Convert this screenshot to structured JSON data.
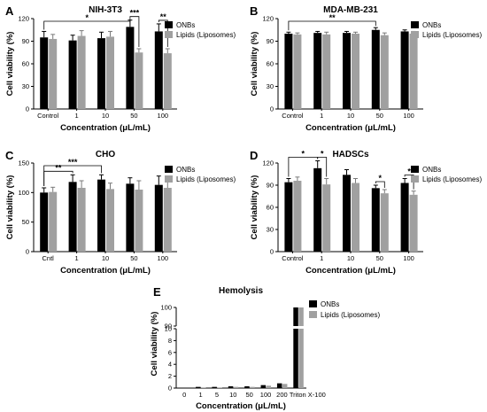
{
  "colors": {
    "onbs": "#000000",
    "lipids": "#a0a0a0"
  },
  "chart_data": [
    {
      "letter": "A",
      "title": "NIH-3T3",
      "type": "bar",
      "xlabel": "Concentration  (μL/mL)",
      "ylabel": "Cell viability (%)",
      "ylim": [
        0,
        120
      ],
      "yticks": [
        "0",
        "30",
        "60",
        "90",
        "120"
      ],
      "ytick_values": [
        0,
        30,
        60,
        90,
        120
      ],
      "categories": [
        "Control",
        "1",
        "10",
        "50",
        "100"
      ],
      "legend": [
        "ONBs",
        "Lipids (Liposomes)"
      ],
      "legend_position": "top-right",
      "series": [
        {
          "name": "ONBs",
          "values": [
            95,
            91,
            94,
            109,
            103
          ],
          "errors": [
            8,
            7,
            8,
            9,
            10
          ]
        },
        {
          "name": "Lipids (Liposomes)",
          "values": [
            93,
            97,
            96,
            75,
            74
          ],
          "errors": [
            6,
            7,
            7,
            5,
            6
          ]
        }
      ],
      "significance": [
        {
          "label": "*",
          "from": "ONBs:0",
          "to": "ONBs:3"
        },
        {
          "label": "***",
          "from": "ONBs:3",
          "to": "Lipids (Liposomes):3"
        },
        {
          "label": "**",
          "from": "ONBs:4",
          "to": "Lipids (Liposomes):4"
        }
      ]
    },
    {
      "letter": "B",
      "title": "MDA-MB-231",
      "type": "bar",
      "xlabel": "Concentration  (μL/mL)",
      "ylabel": "Cell viability (%)",
      "ylim": [
        0,
        120
      ],
      "yticks": [
        "0",
        "30",
        "60",
        "90",
        "120"
      ],
      "ytick_values": [
        0,
        30,
        60,
        90,
        120
      ],
      "categories": [
        "Control",
        "1",
        "10",
        "50",
        "100"
      ],
      "legend": [
        "ONBs",
        "Lipids (Liposomes)"
      ],
      "legend_position": "top-right",
      "series": [
        {
          "name": "ONBs",
          "values": [
            100,
            101,
            101,
            105,
            103
          ],
          "errors": [
            2,
            2,
            2,
            3,
            2
          ]
        },
        {
          "name": "Lipids (Liposomes)",
          "values": [
            99,
            99,
            100,
            98,
            100
          ],
          "errors": [
            2,
            3,
            2,
            3,
            3
          ]
        }
      ],
      "significance": [
        {
          "label": "**",
          "from": "ONBs:0",
          "to": "ONBs:3"
        }
      ]
    },
    {
      "letter": "C",
      "title": "CHO",
      "type": "bar",
      "xlabel": "Concentration  (μL/mL)",
      "ylabel": "Cell viability (%)",
      "ylim": [
        0,
        150
      ],
      "yticks": [
        "0",
        "50",
        "100",
        "150"
      ],
      "ytick_values": [
        0,
        50,
        100,
        150
      ],
      "categories": [
        "Cntl",
        "1",
        "10",
        "50",
        "100"
      ],
      "legend": [
        "ONBs",
        "Lipids (Liposomes)"
      ],
      "legend_position": "top-right",
      "series": [
        {
          "name": "ONBs",
          "values": [
            100,
            118,
            122,
            115,
            113
          ],
          "errors": [
            8,
            12,
            8,
            10,
            15
          ]
        },
        {
          "name": "Lipids (Liposomes)",
          "values": [
            101,
            108,
            106,
            105,
            108
          ],
          "errors": [
            8,
            12,
            10,
            15,
            18
          ]
        }
      ],
      "significance": [
        {
          "label": "**",
          "from": "ONBs:0",
          "to": "ONBs:1"
        },
        {
          "label": "***",
          "from": "ONBs:0",
          "to": "ONBs:2"
        }
      ]
    },
    {
      "letter": "D",
      "title": "HADSCs",
      "type": "bar",
      "xlabel": "Concentration  (μL/mL)",
      "ylabel": "Cell viability (%)",
      "ylim": [
        0,
        120
      ],
      "yticks": [
        "0",
        "30",
        "60",
        "90",
        "120"
      ],
      "ytick_values": [
        0,
        30,
        60,
        90,
        120
      ],
      "categories": [
        "Control",
        "1",
        "10",
        "50",
        "100"
      ],
      "legend": [
        "ONBs",
        "Lipids (Liposomes)"
      ],
      "legend_position": "top-right",
      "series": [
        {
          "name": "ONBs",
          "values": [
            94,
            113,
            104,
            86,
            93
          ],
          "errors": [
            5,
            10,
            7,
            4,
            6
          ]
        },
        {
          "name": "Lipids (Liposomes)",
          "values": [
            96,
            91,
            93,
            79,
            77
          ],
          "errors": [
            5,
            8,
            6,
            5,
            5
          ]
        }
      ],
      "significance": [
        {
          "label": "*",
          "from": "ONBs:0",
          "to": "ONBs:1"
        },
        {
          "label": "*",
          "from": "ONBs:1",
          "to": "Lipids (Liposomes):1"
        },
        {
          "label": "*",
          "from": "ONBs:3",
          "to": "Lipids (Liposomes):3"
        },
        {
          "label": "*",
          "from": "ONBs:4",
          "to": "Lipids (Liposomes):4"
        }
      ]
    },
    {
      "letter": "E",
      "title": "Hemolysis",
      "type": "bar",
      "xlabel": "Concentration  (μL/mL)",
      "ylabel": "Cell viability (%)",
      "axis_break": true,
      "lower_ylim": [
        0,
        10
      ],
      "upper_ylim": [
        90,
        100
      ],
      "yticks_lower": [
        "0",
        "2",
        "4",
        "6",
        "8",
        "10"
      ],
      "ytick_values_lower": [
        0,
        2,
        4,
        6,
        8,
        10
      ],
      "yticks_upper": [
        "90",
        "100"
      ],
      "ytick_values_upper": [
        90,
        100
      ],
      "categories": [
        "0",
        "1",
        "5",
        "10",
        "50",
        "100",
        "200",
        "Triton X-100"
      ],
      "legend": [
        "ONBs",
        "Lipids (Liposomes)"
      ],
      "legend_position": "top-right",
      "series": [
        {
          "name": "ONBs",
          "values": [
            0,
            0.2,
            0.2,
            0.3,
            0.3,
            0.5,
            0.8,
            100
          ]
        },
        {
          "name": "Lipids (Liposomes)",
          "values": [
            0,
            0.1,
            0.1,
            0.2,
            0.2,
            0.4,
            0.7,
            100
          ]
        }
      ]
    }
  ]
}
